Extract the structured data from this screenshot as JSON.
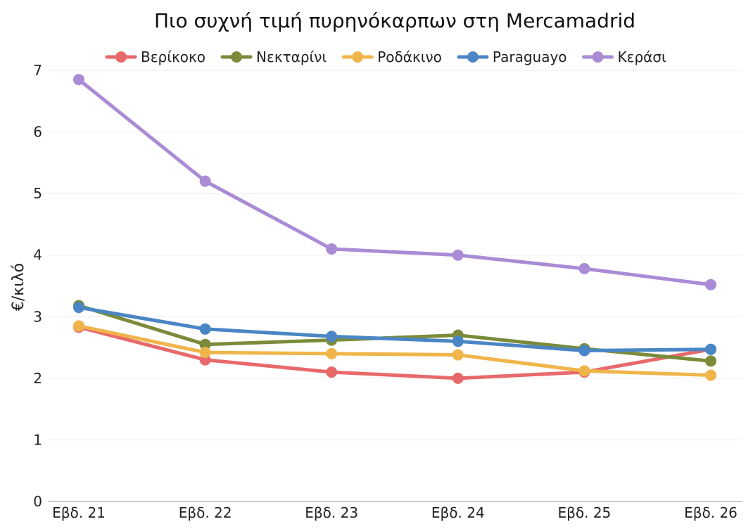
{
  "chart_data": {
    "type": "line",
    "title": "Πιο συχνή τιμή πυρηνόκαρπων στη Mercamadrid",
    "xlabel": "",
    "ylabel": "€/κιλό",
    "categories": [
      "Εβδ. 21",
      "Εβδ. 22",
      "Εβδ. 23",
      "Εβδ. 24",
      "Εβδ. 25",
      "Εβδ. 26"
    ],
    "ylim": [
      0,
      7
    ],
    "yticks": [
      0,
      1,
      2,
      3,
      4,
      5,
      6,
      7
    ],
    "grid": "horizontal",
    "legend_position": "top",
    "series": [
      {
        "name": "Βερίκοκο",
        "color": "#e8696b",
        "values": [
          2.83,
          2.3,
          2.1,
          2.0,
          2.1,
          2.47
        ]
      },
      {
        "name": "Νεκταρίνι",
        "color": "#7a8b3a",
        "values": [
          3.18,
          2.55,
          2.62,
          2.7,
          2.48,
          2.28
        ]
      },
      {
        "name": "Ροδάκινο",
        "color": "#f0b54a",
        "values": [
          2.85,
          2.42,
          2.4,
          2.38,
          2.12,
          2.05
        ]
      },
      {
        "name": "Paraguayo",
        "color": "#4a86c4",
        "values": [
          3.15,
          2.8,
          2.68,
          2.6,
          2.45,
          2.47
        ]
      },
      {
        "name": "Κεράσι",
        "color": "#a98bd6",
        "values": [
          6.85,
          5.2,
          4.1,
          4.0,
          3.78,
          3.52
        ]
      }
    ]
  }
}
